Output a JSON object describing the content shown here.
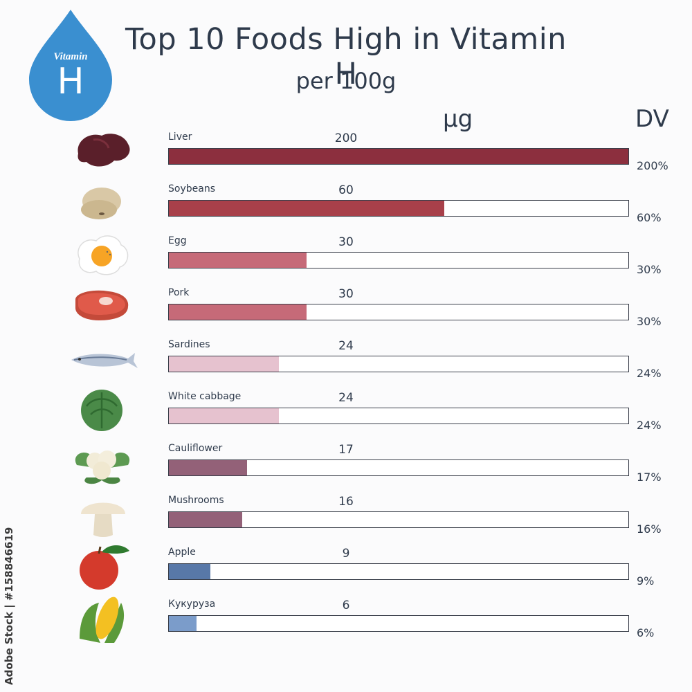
{
  "badge": {
    "word": "Vitamin",
    "letter": "H",
    "color": "#3a8fd0"
  },
  "title": "Top 10 Foods High in Vitamin H",
  "subtitle": "per 100g",
  "unit_label": "µg",
  "dv_label": "DV",
  "credit": "Adobe Stock | #158846619",
  "chart_data": {
    "type": "bar",
    "orientation": "horizontal",
    "title": "Top 10 Foods High in Vitamin H",
    "subtitle": "per 100g",
    "categories": [
      "Liver",
      "Soybeans",
      "Egg",
      "Pork",
      "Sardines",
      "White cabbage",
      "Cauliflower",
      "Mushrooms",
      "Apple",
      "Кукуруза"
    ],
    "values": [
      200,
      60,
      30,
      30,
      24,
      24,
      17,
      16,
      9,
      6
    ],
    "value_labels": [
      "200",
      "60",
      "30",
      "30",
      "24",
      "24",
      "17",
      "16",
      "9",
      "6"
    ],
    "dv_labels": [
      "200%",
      "60%",
      "30%",
      "30%",
      "24%",
      "24%",
      "17%",
      "16%",
      "9%",
      "6%"
    ],
    "bar_colors": [
      "#8c2f3e",
      "#a8404a",
      "#c66a78",
      "#c66a78",
      "#e6c2cf",
      "#e6c2cf",
      "#936178",
      "#936178",
      "#5878a8",
      "#7b9cca"
    ],
    "icons": [
      "liver-icon",
      "soybeans-icon",
      "egg-icon",
      "pork-icon",
      "sardine-icon",
      "cabbage-icon",
      "cauliflower-icon",
      "mushroom-icon",
      "apple-icon",
      "corn-icon"
    ],
    "xlim": [
      0,
      100
    ],
    "value_unit": "µg",
    "dv_unit": "DV"
  }
}
